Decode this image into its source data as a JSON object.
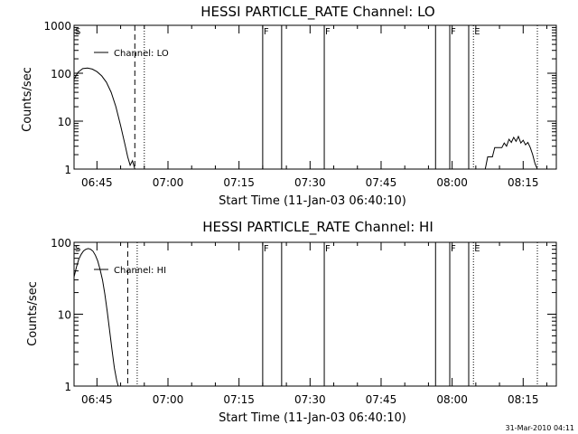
{
  "chart_data": [
    {
      "type": "line",
      "title": "HESSI PARTICLE_RATE Channel: LO",
      "xlabel": "Start Time (11-Jan-03 06:40:10)",
      "ylabel": "Counts/sec",
      "yscale": "log",
      "ylim": [
        1,
        1000
      ],
      "xlim": [
        "06:40:10",
        "08:22:00"
      ],
      "yticks": [
        "1",
        "10",
        "100",
        "1000"
      ],
      "xticks": [
        "06:45",
        "07:00",
        "07:15",
        "07:30",
        "07:45",
        "08:00",
        "08:15"
      ],
      "grid": false,
      "legend": {
        "position": "top-left",
        "entries": [
          "Channel: LO"
        ]
      },
      "series": [
        {
          "name": "Channel: LO",
          "segments": [
            [
              [
                "06:40:10",
                75
              ],
              [
                "06:41:00",
                105
              ],
              [
                "06:42:00",
                125
              ],
              [
                "06:43:00",
                128
              ],
              [
                "06:44:00",
                122
              ],
              [
                "06:45:00",
                108
              ],
              [
                "06:46:00",
                88
              ],
              [
                "06:47:00",
                65
              ],
              [
                "06:48:00",
                40
              ],
              [
                "06:49:00",
                20
              ],
              [
                "06:50:00",
                8
              ],
              [
                "06:51:00",
                3
              ],
              [
                "06:51:30",
                1.8
              ],
              [
                "06:52:00",
                1.2
              ],
              [
                "06:52:30",
                1.5
              ],
              [
                "06:53:00",
                1
              ]
            ],
            [
              [
                "08:07:00",
                1
              ],
              [
                "08:07:30",
                1.8
              ],
              [
                "08:08:30",
                1.8
              ],
              [
                "08:09:00",
                2.8
              ],
              [
                "08:10:30",
                2.8
              ],
              [
                "08:11:00",
                3.5
              ],
              [
                "08:11:30",
                3
              ],
              [
                "08:12:00",
                4.2
              ],
              [
                "08:12:30",
                3.6
              ],
              [
                "08:13:00",
                4.6
              ],
              [
                "08:13:30",
                3.8
              ],
              [
                "08:14:00",
                4.8
              ],
              [
                "08:14:30",
                3.5
              ],
              [
                "08:15:00",
                4
              ],
              [
                "08:15:30",
                3.2
              ],
              [
                "08:16:00",
                3.6
              ],
              [
                "08:16:30",
                2.8
              ],
              [
                "08:17:00",
                2
              ],
              [
                "08:17:30",
                1.3
              ],
              [
                "08:18:00",
                1
              ]
            ]
          ]
        }
      ],
      "annotations": [
        {
          "label": "S",
          "time": "06:40:10"
        },
        {
          "label": "F",
          "time": "07:20:00"
        },
        {
          "label": "F",
          "time": "07:33:00"
        },
        {
          "label": "F",
          "time": "07:59:30"
        },
        {
          "label": "E",
          "time": "08:04:30"
        }
      ],
      "vlines": [
        {
          "time": "06:53:00",
          "style": "dashed"
        },
        {
          "time": "06:55:00",
          "style": "dotted"
        },
        {
          "time": "07:20:00",
          "style": "solid"
        },
        {
          "time": "07:24:00",
          "style": "solid"
        },
        {
          "time": "07:33:00",
          "style": "solid"
        },
        {
          "time": "07:56:30",
          "style": "solid"
        },
        {
          "time": "07:59:30",
          "style": "solid"
        },
        {
          "time": "08:03:30",
          "style": "solid"
        },
        {
          "time": "08:04:30",
          "style": "dotted"
        },
        {
          "time": "08:18:00",
          "style": "dotted"
        }
      ]
    },
    {
      "type": "line",
      "title": "HESSI PARTICLE_RATE Channel: HI",
      "xlabel": "Start Time (11-Jan-03 06:40:10)",
      "ylabel": "Counts/sec",
      "yscale": "log",
      "ylim": [
        1,
        100
      ],
      "xlim": [
        "06:40:10",
        "08:22:00"
      ],
      "yticks": [
        "1",
        "10",
        "100"
      ],
      "xticks": [
        "06:45",
        "07:00",
        "07:15",
        "07:30",
        "07:45",
        "08:00",
        "08:15"
      ],
      "grid": false,
      "legend": {
        "position": "top-left",
        "entries": [
          "Channel: HI"
        ]
      },
      "series": [
        {
          "name": "Channel: HI",
          "segments": [
            [
              [
                "06:40:10",
                33
              ],
              [
                "06:40:40",
                45
              ],
              [
                "06:41:10",
                58
              ],
              [
                "06:41:40",
                68
              ],
              [
                "06:42:10",
                76
              ],
              [
                "06:42:40",
                80
              ],
              [
                "06:43:10",
                82
              ],
              [
                "06:43:40",
                80
              ],
              [
                "06:44:10",
                75
              ],
              [
                "06:44:40",
                66
              ],
              [
                "06:45:10",
                55
              ],
              [
                "06:45:40",
                42
              ],
              [
                "06:46:10",
                30
              ],
              [
                "06:46:40",
                19
              ],
              [
                "06:47:10",
                11
              ],
              [
                "06:47:40",
                6
              ],
              [
                "06:48:10",
                3.2
              ],
              [
                "06:48:40",
                1.8
              ],
              [
                "06:49:10",
                1.2
              ],
              [
                "06:49:30",
                1
              ]
            ]
          ]
        }
      ],
      "annotations": [
        {
          "label": "S",
          "time": "06:40:10"
        },
        {
          "label": "F",
          "time": "07:20:00"
        },
        {
          "label": "F",
          "time": "07:33:00"
        },
        {
          "label": "F",
          "time": "07:59:30"
        },
        {
          "label": "E",
          "time": "08:04:30"
        }
      ],
      "vlines": [
        {
          "time": "06:51:30",
          "style": "dashed"
        },
        {
          "time": "06:53:30",
          "style": "dotted"
        },
        {
          "time": "07:20:00",
          "style": "solid"
        },
        {
          "time": "07:24:00",
          "style": "solid"
        },
        {
          "time": "07:33:00",
          "style": "solid"
        },
        {
          "time": "07:56:30",
          "style": "solid"
        },
        {
          "time": "07:59:30",
          "style": "solid"
        },
        {
          "time": "08:03:30",
          "style": "solid"
        },
        {
          "time": "08:04:30",
          "style": "dotted"
        },
        {
          "time": "08:18:00",
          "style": "dotted"
        }
      ]
    }
  ],
  "footer": {
    "stamp": "31-Mar-2010 04:11"
  }
}
